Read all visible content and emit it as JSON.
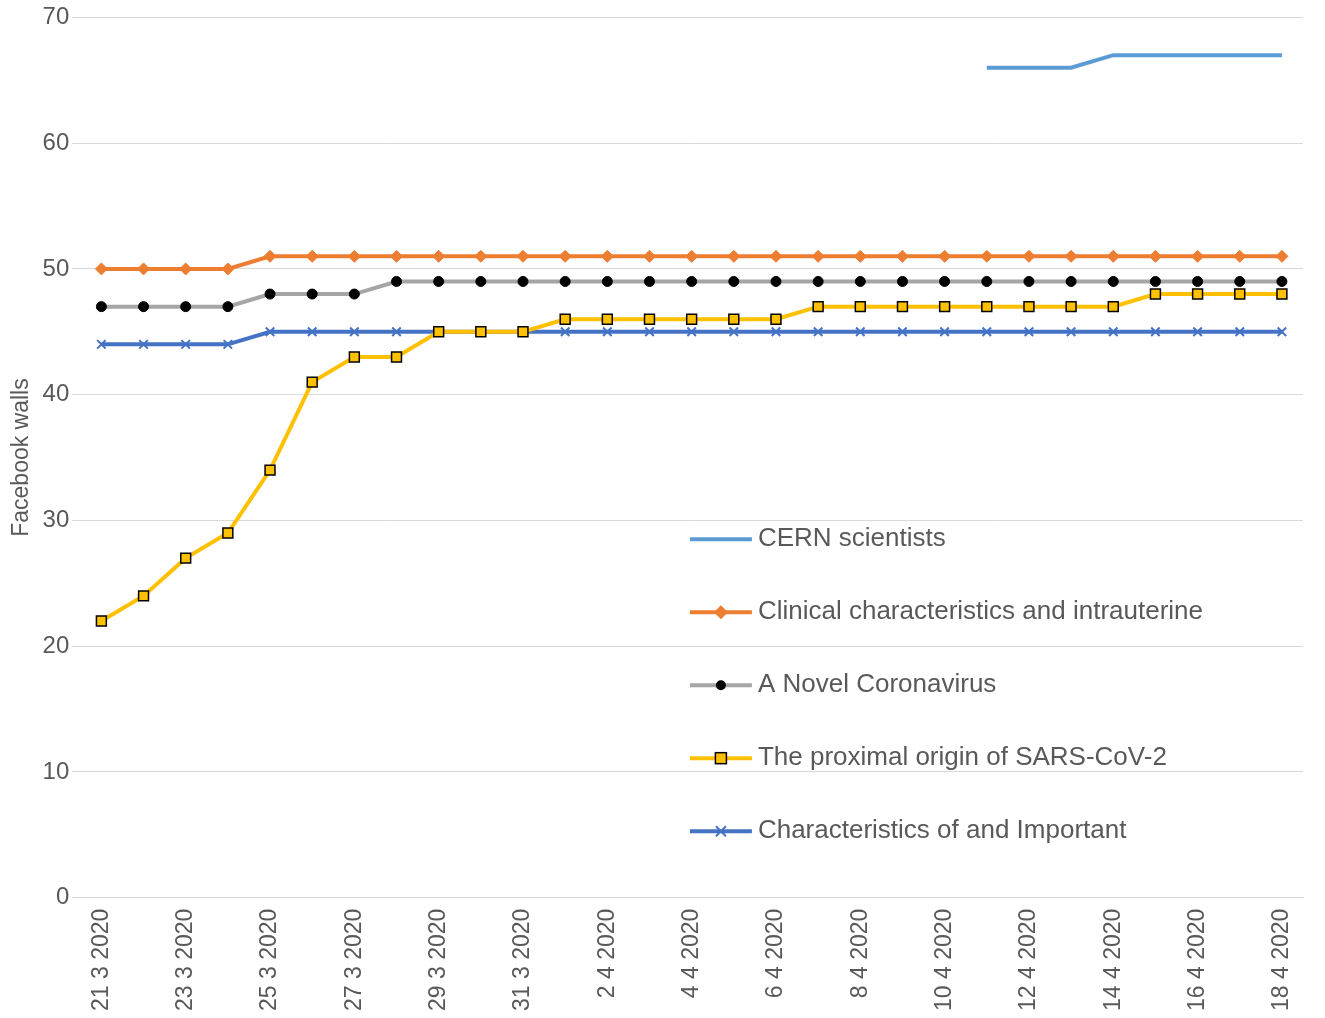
{
  "chart_data": {
    "type": "line",
    "ylabel": "Facebook walls",
    "categories": [
      "21 3 2020",
      null,
      "23 3 2020",
      null,
      "25 3 2020",
      null,
      "27 3 2020",
      null,
      "29 3 2020",
      null,
      "31 3 2020",
      null,
      "2 4 2020",
      null,
      "4 4 2020",
      null,
      "6 4 2020",
      null,
      "8 4 2020",
      null,
      "10 4 2020",
      null,
      "12 4 2020",
      null,
      "14 4 2020",
      null,
      "16 4 2020",
      null,
      "18 4 2020"
    ],
    "series": [
      {
        "name": "CERN scientists",
        "color": "#5b9bd5",
        "marker": "none",
        "values": [
          null,
          null,
          null,
          null,
          null,
          null,
          null,
          null,
          null,
          null,
          null,
          null,
          null,
          null,
          null,
          null,
          null,
          null,
          null,
          null,
          null,
          66,
          66,
          66,
          67,
          67,
          67,
          67,
          67
        ]
      },
      {
        "name": "Clinical characteristics and intrauterine",
        "color": "#ed7d31",
        "marker": "diamond",
        "values": [
          50,
          50,
          50,
          50,
          51,
          51,
          51,
          51,
          51,
          51,
          51,
          51,
          51,
          51,
          51,
          51,
          51,
          51,
          51,
          51,
          51,
          51,
          51,
          51,
          51,
          51,
          51,
          51,
          51
        ]
      },
      {
        "name": "A Novel Coronavirus",
        "color": "#a5a5a5",
        "marker": "circle",
        "values": [
          47,
          47,
          47,
          47,
          48,
          48,
          48,
          49,
          49,
          49,
          49,
          49,
          49,
          49,
          49,
          49,
          49,
          49,
          49,
          49,
          49,
          49,
          49,
          49,
          49,
          49,
          49,
          49,
          49
        ]
      },
      {
        "name": "The proximal origin of SARS-CoV-2",
        "color": "#ffc000",
        "marker": "square",
        "values": [
          22,
          24,
          27,
          29,
          34,
          41,
          43,
          43,
          45,
          45,
          45,
          46,
          46,
          46,
          46,
          46,
          46,
          47,
          47,
          47,
          47,
          47,
          47,
          47,
          47,
          48,
          48,
          48,
          48
        ]
      },
      {
        "name": "Characteristics of and Important",
        "color": "#4472c4",
        "marker": "x",
        "values": [
          44,
          44,
          44,
          44,
          45,
          45,
          45,
          45,
          45,
          45,
          45,
          45,
          45,
          45,
          45,
          45,
          45,
          45,
          45,
          45,
          45,
          45,
          45,
          45,
          45,
          45,
          45,
          45,
          45
        ]
      }
    ],
    "ylim": [
      0,
      70
    ],
    "yticks": [
      0,
      10,
      20,
      30,
      40,
      50,
      60,
      70
    ],
    "grid": true,
    "legend": "lower right"
  }
}
